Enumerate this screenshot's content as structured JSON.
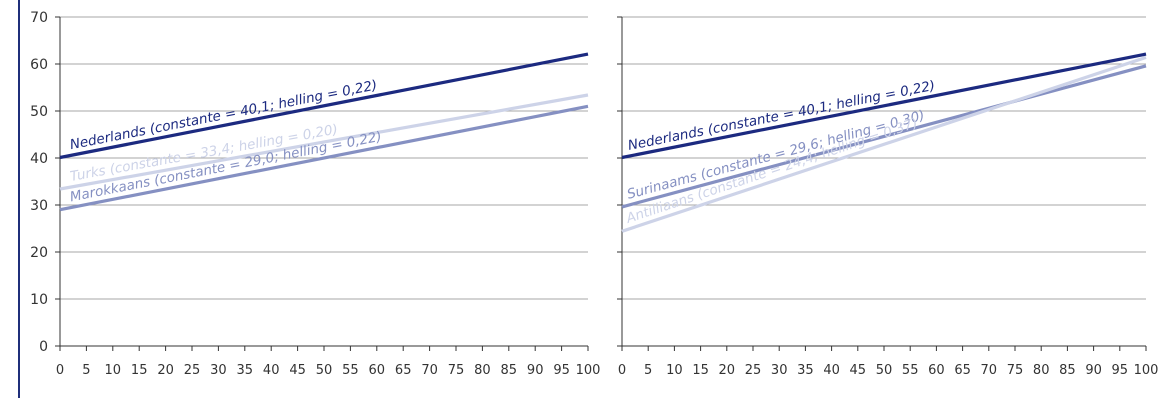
{
  "colors": {
    "nederlands": "#1c2a80",
    "turks": "#cdd3e8",
    "marokkaans": "#8590c2",
    "surinaams": "#8590c2",
    "antilliaans": "#cdd3e8",
    "grid": "#8a8a8a",
    "axis": "#333333",
    "tick_text": "#333333"
  },
  "chart_data": [
    {
      "type": "line",
      "xlim": [
        0,
        100
      ],
      "ylim": [
        0,
        70
      ],
      "x_ticks": [
        "0",
        "5",
        "10",
        "15",
        "20",
        "25",
        "30",
        "35",
        "40",
        "45",
        "50",
        "55",
        "60",
        "65",
        "70",
        "75",
        "80",
        "85",
        "90",
        "95",
        "100"
      ],
      "y_ticks": [
        "0",
        "10",
        "20",
        "30",
        "40",
        "50",
        "60",
        "70"
      ],
      "grid": "horizontal",
      "series": [
        {
          "key": "nederlands",
          "label": "Nederlands (constante = 40,1; helling = 0,22)",
          "x": [
            0,
            100
          ],
          "y": [
            40.1,
            62.1
          ]
        },
        {
          "key": "turks",
          "label": "Turks (constante = 33,4; helling = 0,20)",
          "x": [
            0,
            100
          ],
          "y": [
            33.4,
            53.4
          ]
        },
        {
          "key": "marokkaans",
          "label": "Marokkaans (constante = 29,0; helling = 0,22)",
          "x": [
            0,
            100
          ],
          "y": [
            29.0,
            51.0
          ]
        }
      ]
    },
    {
      "type": "line",
      "xlim": [
        0,
        100
      ],
      "ylim": [
        0,
        70
      ],
      "x_ticks": [
        "0",
        "5",
        "10",
        "15",
        "20",
        "25",
        "30",
        "35",
        "40",
        "45",
        "50",
        "55",
        "60",
        "65",
        "70",
        "75",
        "80",
        "85",
        "90",
        "95",
        "100"
      ],
      "y_ticks": [
        "0",
        "10",
        "20",
        "30",
        "40",
        "50",
        "60",
        "70"
      ],
      "grid": "horizontal",
      "series": [
        {
          "key": "nederlands",
          "label": "Nederlands (constante = 40,1; helling = 0,22)",
          "x": [
            0,
            100
          ],
          "y": [
            40.1,
            62.1
          ]
        },
        {
          "key": "surinaams",
          "label": "Surinaams (constante = 29,6; helling = 0,30)",
          "x": [
            0,
            100
          ],
          "y": [
            29.6,
            59.6
          ]
        },
        {
          "key": "antilliaans",
          "label": "Antilliaans (constante = 24,4; helling = 0,37)",
          "x": [
            0,
            100
          ],
          "y": [
            24.4,
            61.4
          ]
        }
      ]
    }
  ]
}
